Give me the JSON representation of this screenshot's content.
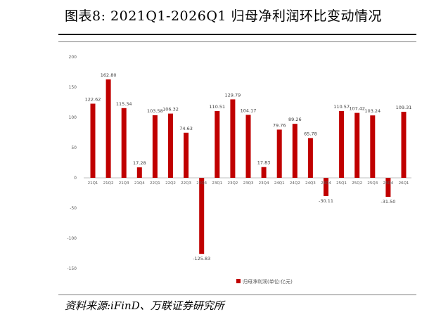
{
  "title": "图表8:   2021Q1-2026Q1 归母净利润环比变动情况",
  "source": "资料来源:iFinD、万联证券研究所",
  "colors": {
    "bar": "#C00000",
    "axis": "#bfbfbf",
    "text": "#595959"
  },
  "chart_data": {
    "type": "bar",
    "categories": [
      "21Q1",
      "21Q2",
      "21Q3",
      "21Q4",
      "22Q1",
      "22Q2",
      "22Q3",
      "22Q4",
      "23Q1",
      "23Q2",
      "23Q3",
      "23Q4",
      "24Q1",
      "24Q2",
      "24Q3",
      "24Q4",
      "25Q1",
      "25Q2",
      "25Q3",
      "25Q4",
      "26Q1"
    ],
    "series": [
      {
        "name": "归母净利润(单位:亿元)",
        "values": [
          122.62,
          162.8,
          115.34,
          17.28,
          103.58,
          106.32,
          74.63,
          -125.83,
          110.51,
          129.79,
          104.17,
          17.83,
          79.76,
          89.26,
          65.78,
          -30.11,
          110.57,
          107.42,
          103.24,
          -31.5,
          109.31
        ],
        "labels": [
          "122.62",
          "162.80",
          "115.34",
          "17.28",
          "103.58",
          "106.32",
          "74.63",
          "-125.83",
          "110.51",
          "129.79",
          "104.17",
          "17.83",
          "79.76",
          "89.26",
          "65.78",
          "-30.11",
          "110.57",
          "107.42",
          "103.24",
          "-31.50",
          "109.31"
        ]
      }
    ],
    "yticks": [
      200,
      150,
      100,
      50,
      0,
      -50,
      -100,
      -150
    ],
    "ytick_labels": [
      "200",
      "150",
      "100",
      "50",
      "0",
      "-50",
      "-100",
      "-150"
    ],
    "ylim": [
      -150,
      200
    ],
    "legend_position": "bottom"
  }
}
